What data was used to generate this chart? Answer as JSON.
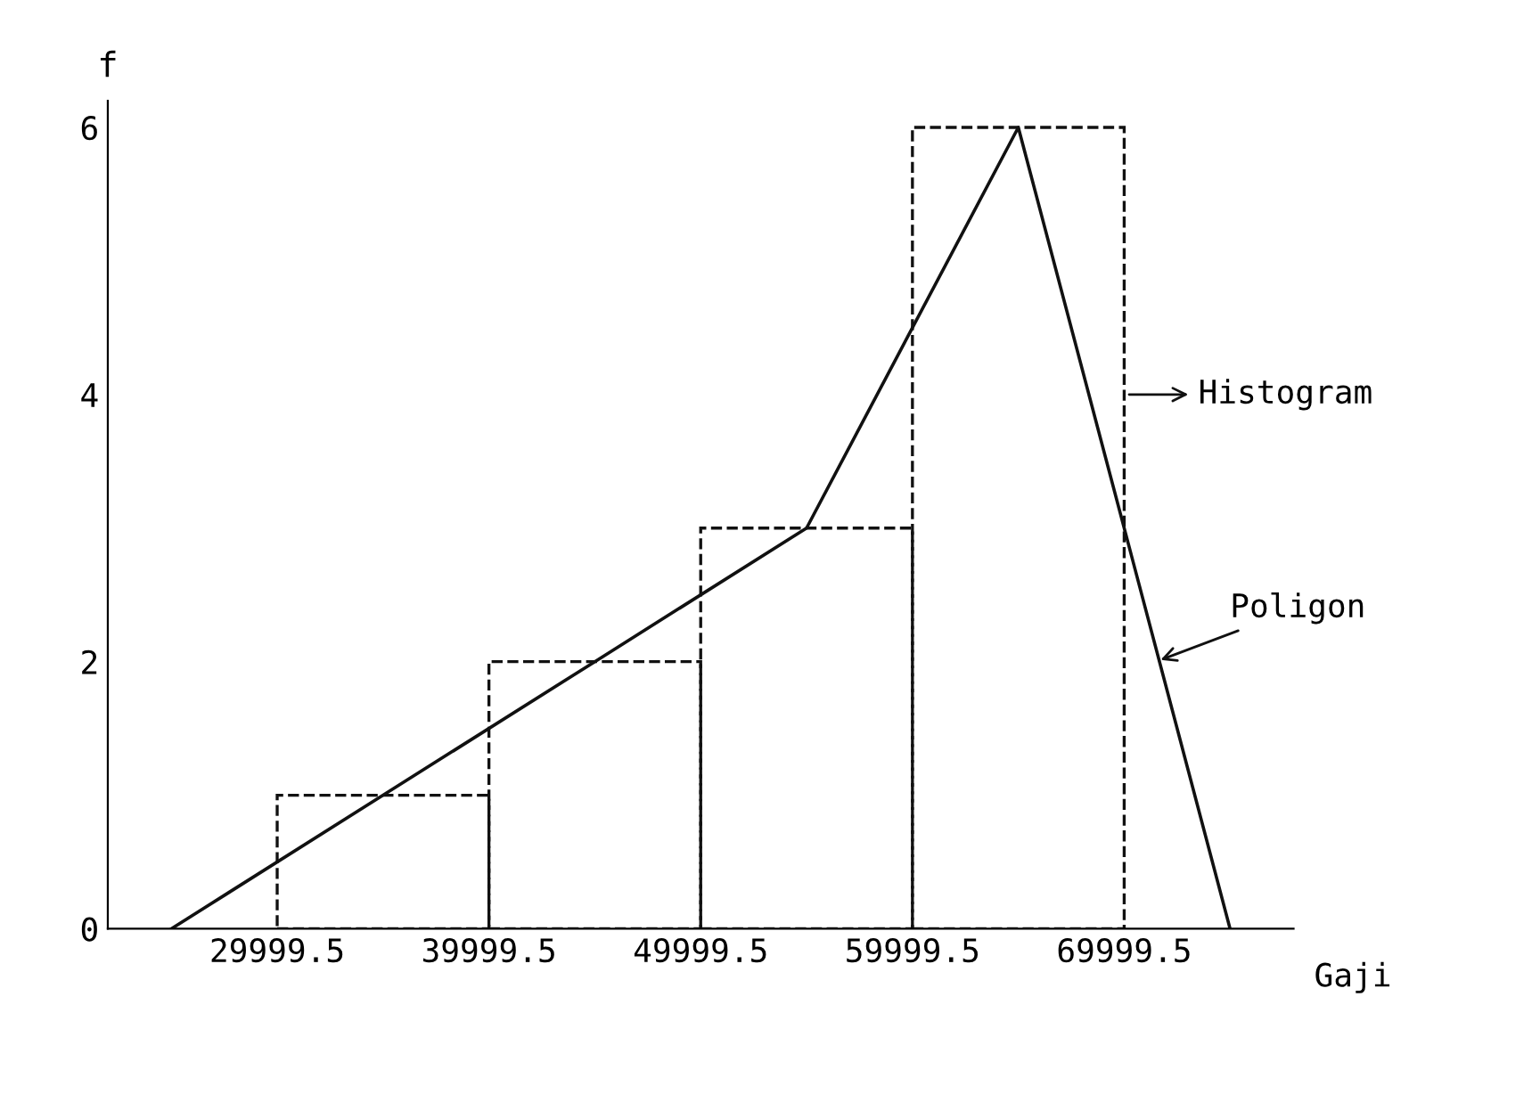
{
  "chart_data": {
    "type": "histogram",
    "xlabel": "Gaji",
    "ylabel": "f",
    "series": [
      {
        "bins": [
          29999.5,
          39999.5,
          49999.5,
          59999.5,
          69999.5
        ],
        "values": [
          1,
          2,
          3,
          6
        ],
        "color": "#111111",
        "line_style": "dashed"
      },
      {
        "type": "line",
        "x": [
          24999.5,
          34999.5,
          44999.5,
          54999.5,
          64999.5,
          74999.5
        ],
        "values": [
          0,
          1,
          2,
          3,
          6,
          0
        ],
        "color": "#111111",
        "line_style": "solid"
      }
    ],
    "xlim": [
      22000,
      78000
    ],
    "ylim": [
      0,
      6.2
    ],
    "xticks": [
      29999.5,
      39999.5,
      49999.5,
      59999.5,
      69999.5
    ],
    "yticks": [
      0,
      2,
      4,
      6
    ],
    "annotations": [
      {
        "text": "Histogram",
        "x": 69999.5,
        "y": 4
      },
      {
        "text": "Poligon",
        "x": 71500,
        "y": 2
      }
    ],
    "grid": false,
    "legend": false
  }
}
